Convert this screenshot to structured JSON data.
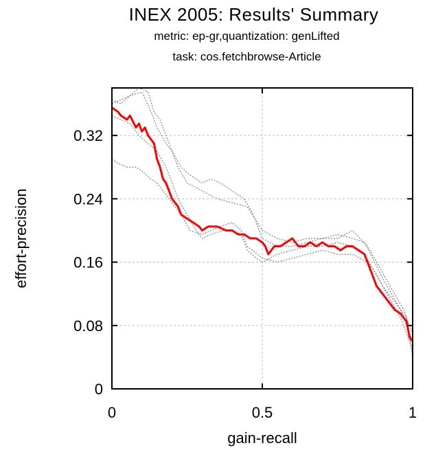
{
  "chart_data": {
    "type": "line",
    "title": "INEX 2005: Results' Summary",
    "subtitle_1": "metric: ep-gr,quantization: genLifted",
    "subtitle_2": "task: cos.fetchbrowse-Article",
    "xlabel": "gain-recall",
    "ylabel": "effort-precision",
    "xlim": [
      0,
      1
    ],
    "ylim": [
      0,
      0.38
    ],
    "xticks": [
      0,
      0.5,
      1
    ],
    "xtick_labels": [
      "0",
      "0.5",
      "1"
    ],
    "yticks": [
      0,
      0.08,
      0.16,
      0.24,
      0.32
    ],
    "ytick_labels": [
      "0",
      "0.08",
      "0.16",
      "0.24",
      "0.32"
    ],
    "grid": true,
    "series": [
      {
        "color": "#ff0000",
        "style": "solid",
        "x": [
          0,
          0.02,
          0.03,
          0.05,
          0.06,
          0.08,
          0.09,
          0.1,
          0.11,
          0.12,
          0.13,
          0.14,
          0.15,
          0.16,
          0.17,
          0.18,
          0.19,
          0.2,
          0.21,
          0.22,
          0.23,
          0.25,
          0.27,
          0.29,
          0.3,
          0.32,
          0.35,
          0.38,
          0.4,
          0.42,
          0.44,
          0.46,
          0.48,
          0.5,
          0.51,
          0.52,
          0.54,
          0.56,
          0.58,
          0.6,
          0.62,
          0.64,
          0.66,
          0.68,
          0.7,
          0.72,
          0.74,
          0.76,
          0.78,
          0.8,
          0.82,
          0.84,
          0.85,
          0.86,
          0.87,
          0.88,
          0.9,
          0.92,
          0.94,
          0.96,
          0.97,
          0.98,
          0.99,
          1.0
        ],
        "y": [
          0.355,
          0.35,
          0.345,
          0.34,
          0.345,
          0.33,
          0.335,
          0.325,
          0.33,
          0.32,
          0.315,
          0.31,
          0.29,
          0.28,
          0.265,
          0.26,
          0.25,
          0.24,
          0.235,
          0.23,
          0.22,
          0.215,
          0.21,
          0.205,
          0.2,
          0.205,
          0.205,
          0.2,
          0.2,
          0.195,
          0.195,
          0.19,
          0.19,
          0.185,
          0.18,
          0.17,
          0.18,
          0.18,
          0.185,
          0.19,
          0.18,
          0.18,
          0.185,
          0.18,
          0.185,
          0.18,
          0.18,
          0.175,
          0.18,
          0.18,
          0.175,
          0.17,
          0.16,
          0.15,
          0.14,
          0.13,
          0.12,
          0.11,
          0.1,
          0.095,
          0.09,
          0.085,
          0.065,
          0.06
        ]
      },
      {
        "color": "#808080",
        "style": "dotted",
        "x": [
          0,
          0.03,
          0.06,
          0.09,
          0.12,
          0.14,
          0.16,
          0.18,
          0.2,
          0.22,
          0.25,
          0.3,
          0.35,
          0.4,
          0.45,
          0.5,
          0.55,
          0.6,
          0.65,
          0.7,
          0.75,
          0.8,
          0.84,
          0.86,
          0.88,
          0.9,
          0.93,
          0.96,
          0.98,
          1.0
        ],
        "y": [
          0.365,
          0.36,
          0.37,
          0.38,
          0.375,
          0.35,
          0.34,
          0.32,
          0.3,
          0.28,
          0.26,
          0.25,
          0.24,
          0.235,
          0.23,
          0.2,
          0.19,
          0.185,
          0.19,
          0.19,
          0.195,
          0.19,
          0.185,
          0.17,
          0.155,
          0.14,
          0.12,
          0.1,
          0.08,
          0.06
        ]
      },
      {
        "color": "#808080",
        "style": "dotted",
        "x": [
          0,
          0.02,
          0.05,
          0.08,
          0.1,
          0.13,
          0.15,
          0.17,
          0.2,
          0.23,
          0.26,
          0.3,
          0.33,
          0.36,
          0.4,
          0.43,
          0.45,
          0.5,
          0.55,
          0.6,
          0.65,
          0.7,
          0.75,
          0.8,
          0.85,
          0.88,
          0.9,
          0.93,
          0.96,
          0.98,
          1.0
        ],
        "y": [
          0.29,
          0.285,
          0.28,
          0.28,
          0.275,
          0.265,
          0.26,
          0.25,
          0.235,
          0.22,
          0.2,
          0.195,
          0.2,
          0.205,
          0.21,
          0.2,
          0.18,
          0.165,
          0.16,
          0.165,
          0.17,
          0.175,
          0.17,
          0.17,
          0.16,
          0.145,
          0.13,
          0.11,
          0.09,
          0.07,
          0.05
        ]
      },
      {
        "color": "#808080",
        "style": "dotted",
        "x": [
          0,
          0.03,
          0.06,
          0.09,
          0.12,
          0.15,
          0.18,
          0.2,
          0.22,
          0.25,
          0.28,
          0.3,
          0.33,
          0.37,
          0.4,
          0.43,
          0.45,
          0.48,
          0.5,
          0.55,
          0.6,
          0.65,
          0.7,
          0.75,
          0.8,
          0.84,
          0.87,
          0.9,
          0.93,
          0.96,
          0.98,
          1.0
        ],
        "y": [
          0.345,
          0.34,
          0.335,
          0.32,
          0.31,
          0.3,
          0.28,
          0.26,
          0.24,
          0.22,
          0.2,
          0.19,
          0.195,
          0.2,
          0.2,
          0.195,
          0.175,
          0.165,
          0.16,
          0.17,
          0.175,
          0.18,
          0.18,
          0.185,
          0.18,
          0.17,
          0.15,
          0.13,
          0.115,
          0.1,
          0.09,
          0.04
        ]
      },
      {
        "color": "#808080",
        "style": "dotted",
        "x": [
          0,
          0.03,
          0.06,
          0.1,
          0.13,
          0.15,
          0.18,
          0.2,
          0.23,
          0.26,
          0.3,
          0.33,
          0.36,
          0.4,
          0.44,
          0.47,
          0.5,
          0.55,
          0.6,
          0.65,
          0.7,
          0.75,
          0.8,
          0.85,
          0.88,
          0.91,
          0.94,
          0.97,
          1.0
        ],
        "y": [
          0.36,
          0.365,
          0.37,
          0.375,
          0.35,
          0.33,
          0.31,
          0.3,
          0.28,
          0.27,
          0.26,
          0.265,
          0.26,
          0.25,
          0.24,
          0.22,
          0.19,
          0.18,
          0.18,
          0.185,
          0.19,
          0.19,
          0.2,
          0.18,
          0.16,
          0.14,
          0.12,
          0.1,
          0.07
        ]
      }
    ]
  }
}
